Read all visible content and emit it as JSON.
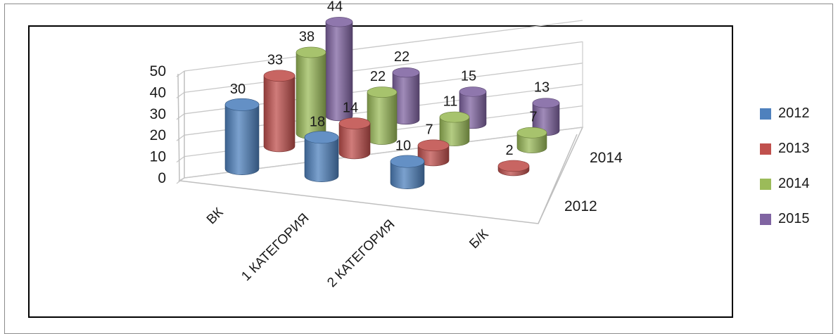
{
  "chart_data": {
    "type": "bar",
    "subtype": "3d-cylinder",
    "title": "",
    "xlabel": "",
    "ylabel": "",
    "ylim": [
      0,
      50
    ],
    "yticks": [
      0,
      10,
      20,
      30,
      40,
      50
    ],
    "categories": [
      "ВК",
      "1 КАТЕГОРИЯ",
      "2 КАТЕГОРИЯ",
      "Б/К"
    ],
    "depth_axis_labels": [
      "2012",
      "2014"
    ],
    "legend_position": "right",
    "grid": true,
    "series": [
      {
        "name": "2012",
        "color": "#4f81bd",
        "values": [
          30,
          18,
          10,
          null
        ]
      },
      {
        "name": "2013",
        "color": "#c0504d",
        "values": [
          33,
          14,
          7,
          2
        ]
      },
      {
        "name": "2014",
        "color": "#9bbb59",
        "values": [
          38,
          22,
          11,
          7
        ]
      },
      {
        "name": "2015",
        "color": "#8064a2",
        "values": [
          44,
          22,
          15,
          13
        ]
      }
    ]
  }
}
